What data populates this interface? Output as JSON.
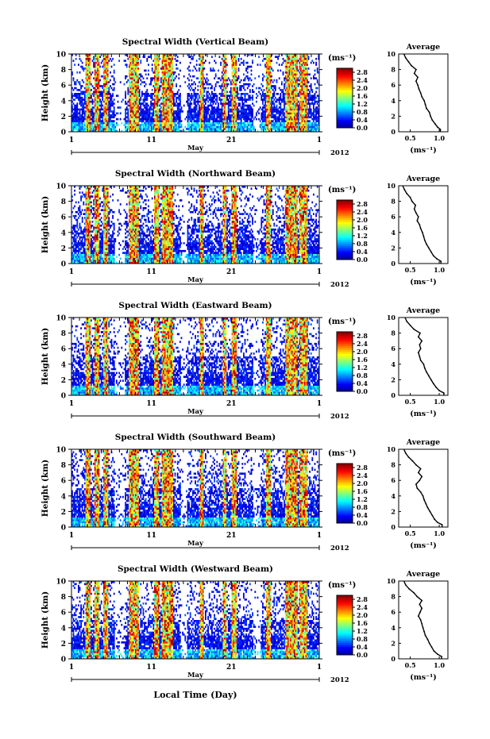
{
  "figure": {
    "time_axis_label": "Local Time (Day)",
    "month_label": "May",
    "year_label": "2012",
    "colorbar_unit": "(ms⁻¹)",
    "profile_title": "Average",
    "profile_xlabel": "(ms⁻¹)",
    "colors": {
      "ink": "#000000",
      "background": "#ffffff"
    }
  },
  "chart_data": [
    {
      "type": "heatmap",
      "title": "Spectral Width (Vertical Beam)",
      "ylabel": "Height (km)",
      "ylim": [
        0,
        10
      ],
      "yticks": [
        0,
        2,
        4,
        6,
        8,
        10
      ],
      "xlim": [
        1,
        32
      ],
      "xtick_labels": [
        "1",
        "11",
        "21",
        "1"
      ],
      "colorbar": {
        "ticks": [
          "0.0",
          "0.4",
          "0.8",
          "1.2",
          "1.6",
          "2.0",
          "2.4",
          "2.8"
        ],
        "range": [
          0,
          3.0
        ]
      },
      "profile": {
        "type": "line",
        "title": "Average",
        "xlim": [
          0.3,
          1.15
        ],
        "ylim": [
          0,
          10
        ],
        "xtick_labels": [
          "0.5",
          "1.0"
        ],
        "ytick_labels": [
          "0",
          "2",
          "4",
          "6",
          "8",
          "10"
        ],
        "height": [
          0.3,
          0.6,
          1.0,
          1.5,
          2.0,
          2.5,
          3.0,
          3.5,
          4.0,
          4.5,
          5.0,
          5.5,
          6.0,
          6.5,
          7.0,
          7.5,
          8.0,
          8.5,
          9.0,
          9.5
        ],
        "width": [
          1.02,
          0.97,
          0.93,
          0.88,
          0.85,
          0.83,
          0.78,
          0.76,
          0.74,
          0.7,
          0.68,
          0.65,
          0.63,
          0.6,
          0.63,
          0.57,
          0.6,
          0.52,
          0.47,
          0.42
        ]
      }
    },
    {
      "type": "heatmap",
      "title": "Spectral Width (Northward Beam)",
      "ylabel": "Height (km)",
      "ylim": [
        0,
        10
      ],
      "yticks": [
        0,
        2,
        4,
        6,
        8,
        10
      ],
      "xlim": [
        1,
        32
      ],
      "xtick_labels": [
        "1",
        "11",
        "21",
        "1"
      ],
      "colorbar": {
        "ticks": [
          "0.0",
          "0.4",
          "0.8",
          "1.2",
          "1.6",
          "2.0",
          "2.4",
          "2.8"
        ],
        "range": [
          0,
          3.0
        ]
      },
      "profile": {
        "type": "line",
        "title": "Average",
        "xlim": [
          0.3,
          1.15
        ],
        "ylim": [
          0,
          10
        ],
        "xtick_labels": [
          "0.5",
          "1.0"
        ],
        "ytick_labels": [
          "0",
          "2",
          "4",
          "6",
          "8",
          "10"
        ],
        "height": [
          0.3,
          0.6,
          1.0,
          1.5,
          2.0,
          2.5,
          3.0,
          3.5,
          4.0,
          4.5,
          5.0,
          5.5,
          6.0,
          6.5,
          7.0,
          7.5,
          8.0,
          8.5,
          9.0,
          9.5
        ],
        "width": [
          1.03,
          0.96,
          0.9,
          0.86,
          0.82,
          0.78,
          0.75,
          0.73,
          0.71,
          0.68,
          0.66,
          0.62,
          0.64,
          0.6,
          0.57,
          0.59,
          0.53,
          0.5,
          0.44,
          0.4
        ]
      }
    },
    {
      "type": "heatmap",
      "title": "Spectral Width (Eastward Beam)",
      "ylabel": "Height (km)",
      "ylim": [
        0,
        10
      ],
      "yticks": [
        0,
        2,
        4,
        6,
        8,
        10
      ],
      "xlim": [
        1,
        32
      ],
      "xtick_labels": [
        "1",
        "11",
        "21",
        "1"
      ],
      "colorbar": {
        "ticks": [
          "0.0",
          "0.4",
          "0.8",
          "1.2",
          "1.6",
          "2.0",
          "2.4",
          "2.8"
        ],
        "range": [
          0,
          3.0
        ]
      },
      "profile": {
        "type": "line",
        "title": "Average",
        "xlim": [
          0.3,
          1.15
        ],
        "ylim": [
          0,
          10
        ],
        "xtick_labels": [
          "0.5",
          "1.0"
        ],
        "ytick_labels": [
          "0",
          "2",
          "4",
          "6",
          "8",
          "10"
        ],
        "height": [
          0.3,
          0.6,
          1.0,
          1.5,
          2.0,
          2.5,
          3.0,
          3.5,
          4.0,
          4.5,
          5.0,
          5.5,
          6.0,
          6.5,
          7.0,
          7.5,
          8.0,
          8.5,
          9.0,
          9.5
        ],
        "width": [
          1.08,
          1.0,
          0.95,
          0.9,
          0.86,
          0.82,
          0.78,
          0.75,
          0.73,
          0.68,
          0.66,
          0.64,
          0.68,
          0.66,
          0.7,
          0.64,
          0.67,
          0.56,
          0.5,
          0.44
        ]
      }
    },
    {
      "type": "heatmap",
      "title": "Spectral Width (Southward Beam)",
      "ylabel": "Height (km)",
      "ylim": [
        0,
        10
      ],
      "yticks": [
        0,
        2,
        4,
        6,
        8,
        10
      ],
      "xlim": [
        1,
        32
      ],
      "xtick_labels": [
        "1",
        "11",
        "21",
        "1"
      ],
      "colorbar": {
        "ticks": [
          "0.0",
          "0.4",
          "0.8",
          "1.2",
          "1.6",
          "2.0",
          "2.4",
          "2.8"
        ],
        "range": [
          0,
          3.0
        ]
      },
      "profile": {
        "type": "line",
        "title": "Average",
        "xlim": [
          0.3,
          1.15
        ],
        "ylim": [
          0,
          10
        ],
        "xtick_labels": [
          "0.5",
          "1.0"
        ],
        "ytick_labels": [
          "0",
          "2",
          "4",
          "6",
          "8",
          "10"
        ],
        "height": [
          0.3,
          0.6,
          1.0,
          1.5,
          2.0,
          2.5,
          3.0,
          3.5,
          4.0,
          4.5,
          5.0,
          5.5,
          6.0,
          6.5,
          7.0,
          7.5,
          8.0,
          8.5,
          9.0,
          9.5
        ],
        "width": [
          1.05,
          0.97,
          0.92,
          0.88,
          0.84,
          0.8,
          0.77,
          0.74,
          0.72,
          0.68,
          0.62,
          0.6,
          0.66,
          0.7,
          0.64,
          0.68,
          0.6,
          0.54,
          0.47,
          0.42
        ]
      }
    },
    {
      "type": "heatmap",
      "title": "Spectral Width (Westward Beam)",
      "ylabel": "Height (km)",
      "ylim": [
        0,
        10
      ],
      "yticks": [
        0,
        2,
        4,
        6,
        8,
        10
      ],
      "xlim": [
        1,
        32
      ],
      "xtick_labels": [
        "1",
        "11",
        "21",
        "1"
      ],
      "colorbar": {
        "ticks": [
          "0.0",
          "0.4",
          "0.8",
          "1.2",
          "1.6",
          "2.0",
          "2.4",
          "2.8"
        ],
        "range": [
          0,
          3.0
        ]
      },
      "profile": {
        "type": "line",
        "title": "Average",
        "xlim": [
          0.3,
          1.15
        ],
        "ylim": [
          0,
          10
        ],
        "xtick_labels": [
          "0.5",
          "1.0"
        ],
        "ytick_labels": [
          "0",
          "2",
          "4",
          "6",
          "8",
          "10"
        ],
        "height": [
          0.3,
          0.6,
          1.0,
          1.5,
          2.0,
          2.5,
          3.0,
          3.5,
          4.0,
          4.5,
          5.0,
          5.5,
          6.0,
          6.5,
          7.0,
          7.5,
          8.0,
          8.5,
          9.0,
          9.5
        ],
        "width": [
          1.04,
          0.97,
          0.91,
          0.87,
          0.83,
          0.8,
          0.76,
          0.74,
          0.72,
          0.7,
          0.68,
          0.64,
          0.67,
          0.7,
          0.66,
          0.7,
          0.62,
          0.56,
          0.48,
          0.42
        ]
      }
    }
  ]
}
